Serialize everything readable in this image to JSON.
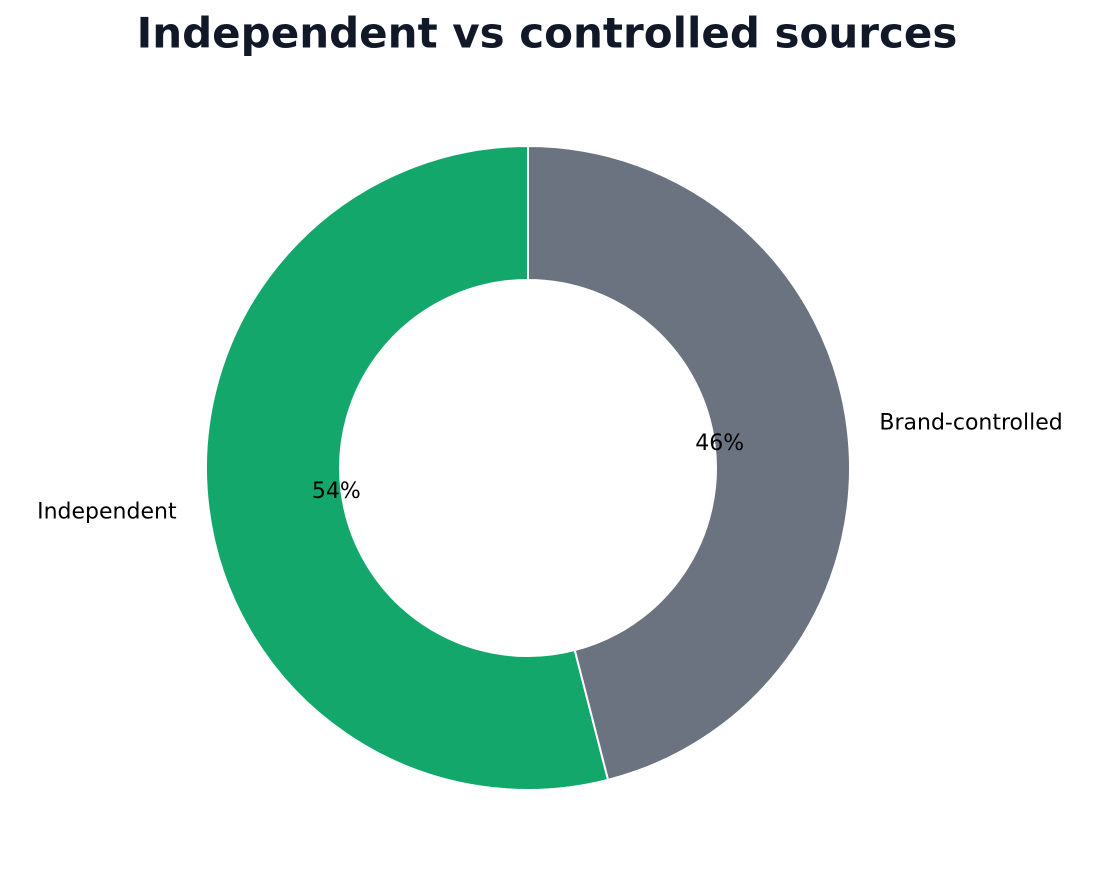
{
  "chart_data": {
    "type": "pie",
    "title": "Independent vs controlled sources",
    "categories": [
      "Independent",
      "Brand-controlled"
    ],
    "values": [
      54,
      46
    ],
    "value_labels": [
      "54%",
      "46%"
    ],
    "colors": [
      "#14a76c",
      "#6b7280"
    ]
  }
}
